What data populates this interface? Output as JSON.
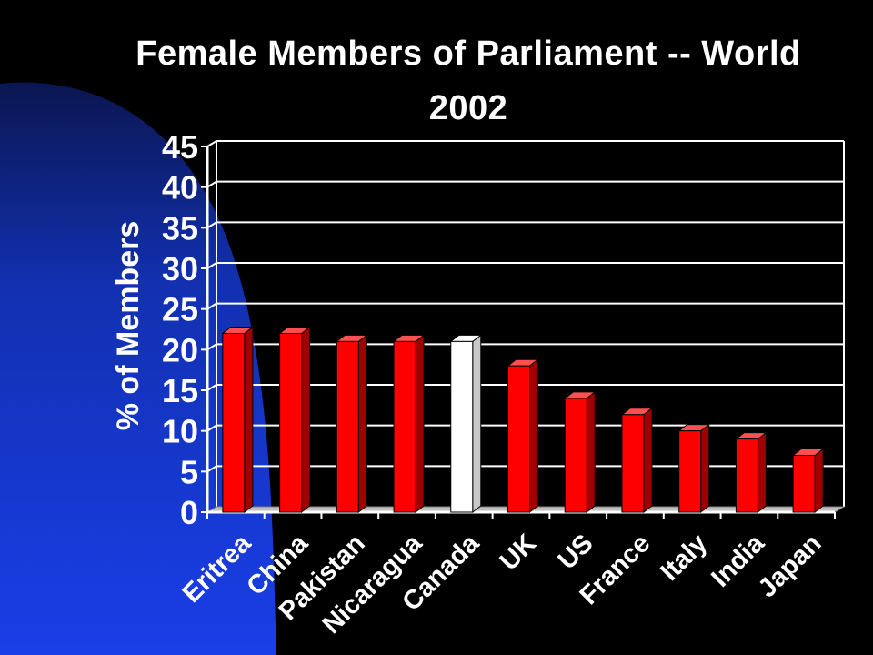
{
  "title_line1": "Female Members of Parliament -- World",
  "title_line2": "2002",
  "colors": {
    "background": "#000000",
    "panel_blue": "#1536d6",
    "bar_red": "#ff0000",
    "bar_red_side": "#a00000",
    "bar_red_top": "#ff5050",
    "bar_highlight": "#ffffff",
    "bar_highlight_side": "#c8c8c8",
    "grid": "#ffffff",
    "floor": "#bfbfbf"
  },
  "chart_data": {
    "type": "bar",
    "categories": [
      "Eritrea",
      "China",
      "Pakistan",
      "Nicaragua",
      "Canada",
      "UK",
      "US",
      "France",
      "Italy",
      "India",
      "Japan"
    ],
    "values": [
      22,
      22,
      21,
      21,
      21,
      18,
      14,
      12,
      10,
      9,
      7
    ],
    "highlighted_category": "Canada",
    "title": "Female Members of Parliament -- World 2002",
    "xlabel": "",
    "ylabel": "% of Members",
    "ylim": [
      0,
      45
    ],
    "yticks": [
      0,
      5,
      10,
      15,
      20,
      25,
      30,
      35,
      40,
      45
    ],
    "grid": true,
    "legend": "none",
    "style": "3d"
  }
}
